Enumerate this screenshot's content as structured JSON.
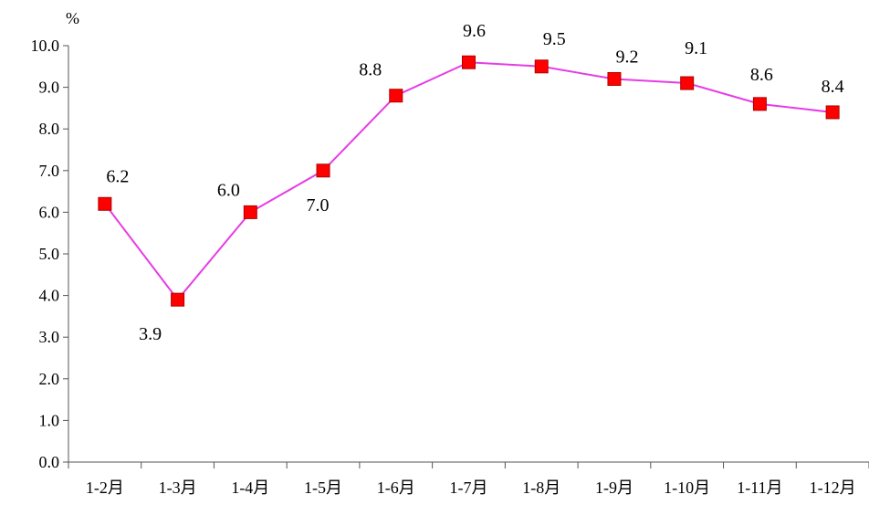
{
  "chart_data": {
    "type": "line",
    "ylabel": "%",
    "ylim": [
      0,
      10
    ],
    "yticks": [
      "0.0",
      "1.0",
      "2.0",
      "3.0",
      "4.0",
      "5.0",
      "6.0",
      "7.0",
      "8.0",
      "9.0",
      "10.0"
    ],
    "categories": [
      "1-2月",
      "1-3月",
      "1-4月",
      "1-5月",
      "1-6月",
      "1-7月",
      "1-8月",
      "1-9月",
      "1-10月",
      "1-11月",
      "1-12月"
    ],
    "series": [
      {
        "values": [
          6.2,
          3.9,
          6.0,
          7.0,
          8.8,
          9.6,
          9.5,
          9.2,
          9.1,
          8.6,
          8.4
        ],
        "labels": [
          "6.2",
          "3.9",
          "6.0",
          "7.0",
          "8.8",
          "9.6",
          "9.5",
          "9.2",
          "9.1",
          "8.6",
          "8.4"
        ]
      }
    ],
    "colors": {
      "line": "#e63ce6",
      "marker": "#ff0000"
    },
    "grid": false
  }
}
